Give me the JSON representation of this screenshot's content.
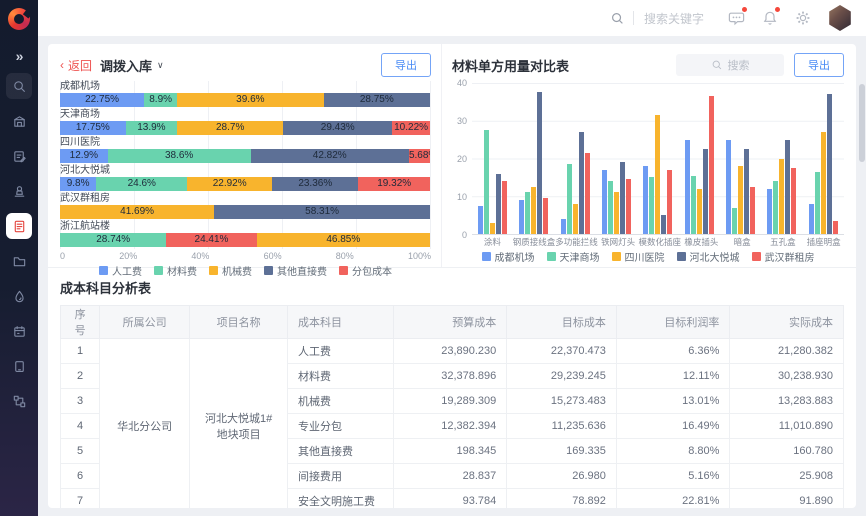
{
  "topbar": {
    "search_placeholder": "搜索关键字"
  },
  "colors": {
    "blue": "#6d9bf3",
    "green": "#69d3ae",
    "yellow": "#f8b42d",
    "slate": "#5d7096",
    "red": "#f1635d",
    "accent": "#4a8cf5",
    "back_red": "#ee5350"
  },
  "left_panel": {
    "back_label": "返回",
    "title": "调拨入库",
    "caret": "∨",
    "export_label": "导出"
  },
  "right_panel": {
    "title": "材料单方用量对比表",
    "search_placeholder": "搜索",
    "export_label": "导出"
  },
  "chart_data": [
    {
      "type": "bar",
      "orientation": "horizontal",
      "stacked": true,
      "unit": "%",
      "x_ticks": [
        "0",
        "20%",
        "40%",
        "60%",
        "80%",
        "100%"
      ],
      "legend_position": "bottom",
      "grid": true,
      "legend": [
        {
          "name": "人工费",
          "color": "blue"
        },
        {
          "name": "材料费",
          "color": "green"
        },
        {
          "name": "机械费",
          "color": "yellow"
        },
        {
          "name": "其他直接费",
          "color": "slate"
        },
        {
          "name": "分包成本",
          "color": "red"
        }
      ],
      "rows": [
        {
          "category": "成都机场",
          "segments": [
            {
              "series": "人工费",
              "color": "blue",
              "value": 22.75
            },
            {
              "series": "材料费",
              "color": "green",
              "value": 8.9
            },
            {
              "series": "机械费",
              "color": "yellow",
              "value": 39.6
            },
            {
              "series": "其他直接费",
              "color": "slate",
              "value": 28.75
            }
          ]
        },
        {
          "category": "天津商场",
          "segments": [
            {
              "series": "人工费",
              "color": "blue",
              "value": 17.75
            },
            {
              "series": "材料费",
              "color": "green",
              "value": 13.9
            },
            {
              "series": "机械费",
              "color": "yellow",
              "value": 28.7
            },
            {
              "series": "其他直接费",
              "color": "slate",
              "value": 29.43
            },
            {
              "series": "分包成本",
              "color": "red",
              "value": 10.22
            }
          ]
        },
        {
          "category": "四川医院",
          "segments": [
            {
              "series": "人工费",
              "color": "blue",
              "value": 12.9
            },
            {
              "series": "材料费",
              "color": "green",
              "value": 38.6
            },
            {
              "series": "其他直接费",
              "color": "slate",
              "value": 42.82
            },
            {
              "series": "分包成本",
              "color": "red",
              "value": 5.68
            }
          ]
        },
        {
          "category": "河北大悦城",
          "segments": [
            {
              "series": "人工费",
              "color": "blue",
              "value": 9.8
            },
            {
              "series": "材料费",
              "color": "green",
              "value": 24.6
            },
            {
              "series": "机械费",
              "color": "yellow",
              "value": 22.92
            },
            {
              "series": "其他直接费",
              "color": "slate",
              "value": 23.36
            },
            {
              "series": "分包成本",
              "color": "red",
              "value": 19.32
            }
          ]
        },
        {
          "category": "武汉群租房",
          "segments": [
            {
              "series": "机械费",
              "color": "yellow",
              "value": 41.69
            },
            {
              "series": "其他直接费",
              "color": "slate",
              "value": 58.31
            }
          ]
        },
        {
          "category": "浙江航站楼",
          "segments": [
            {
              "series": "材料费",
              "color": "green",
              "value": 28.74
            },
            {
              "series": "分包成本",
              "color": "red",
              "value": 24.41
            },
            {
              "series": "机械费",
              "color": "yellow",
              "value": 46.85
            }
          ]
        }
      ]
    },
    {
      "type": "bar",
      "title": "材料单方用量对比表",
      "ylim": [
        0,
        40
      ],
      "y_ticks": [
        40,
        30,
        20,
        10,
        0
      ],
      "grid": true,
      "legend_position": "bottom",
      "categories": [
        "涂料",
        "钢质接线盒",
        "多功能拦线",
        "铁网灯头",
        "模数化插座",
        "橡皮插头",
        "暗盒",
        "五孔盒",
        "插座明盒"
      ],
      "series": [
        {
          "name": "成都机场",
          "color": "blue",
          "values": [
            7.5,
            9,
            4,
            17,
            18,
            25,
            25,
            12,
            8
          ]
        },
        {
          "name": "天津商场",
          "color": "green",
          "values": [
            27.5,
            11,
            18.5,
            14,
            15,
            15.5,
            7,
            14,
            16.5
          ]
        },
        {
          "name": "四川医院",
          "color": "yellow",
          "values": [
            3,
            12.5,
            8,
            11,
            31.5,
            12,
            18,
            20,
            27
          ]
        },
        {
          "name": "河北大悦城",
          "color": "slate",
          "values": [
            16,
            37.5,
            27,
            19,
            5,
            22.5,
            22.5,
            25,
            37
          ]
        },
        {
          "name": "武汉群租房",
          "color": "red",
          "values": [
            14,
            9.5,
            21.5,
            14.5,
            17,
            36.5,
            12.5,
            17.5,
            3.5
          ]
        }
      ]
    }
  ],
  "table": {
    "title": "成本科目分析表",
    "columns": [
      "序号",
      "所属公司",
      "项目名称",
      "成本科目",
      "预算成本",
      "目标成本",
      "目标利润率",
      "实际成本"
    ],
    "company": "华北分公司",
    "project": "河北大悦城1#地块项目",
    "rows": [
      [
        "1",
        "人工费",
        "23,890.230",
        "22,370.473",
        "6.36%",
        "21,280.382"
      ],
      [
        "2",
        "材料费",
        "32,378.896",
        "29,239.245",
        "12.11%",
        "30,238.930"
      ],
      [
        "3",
        "机械费",
        "19,289.309",
        "15,273.483",
        "13.01%",
        "13,283.883"
      ],
      [
        "4",
        "专业分包",
        "12,382.394",
        "11,235.636",
        "16.49%",
        "11,010.890"
      ],
      [
        "5",
        "其他直接费",
        "198.345",
        "169.335",
        "8.80%",
        "160.780"
      ],
      [
        "6",
        "间接费用",
        "28.837",
        "26.980",
        "5.16%",
        "25.908"
      ],
      [
        "7",
        "安全文明施工费",
        "93.784",
        "78.892",
        "22.81%",
        "91.890"
      ]
    ]
  }
}
